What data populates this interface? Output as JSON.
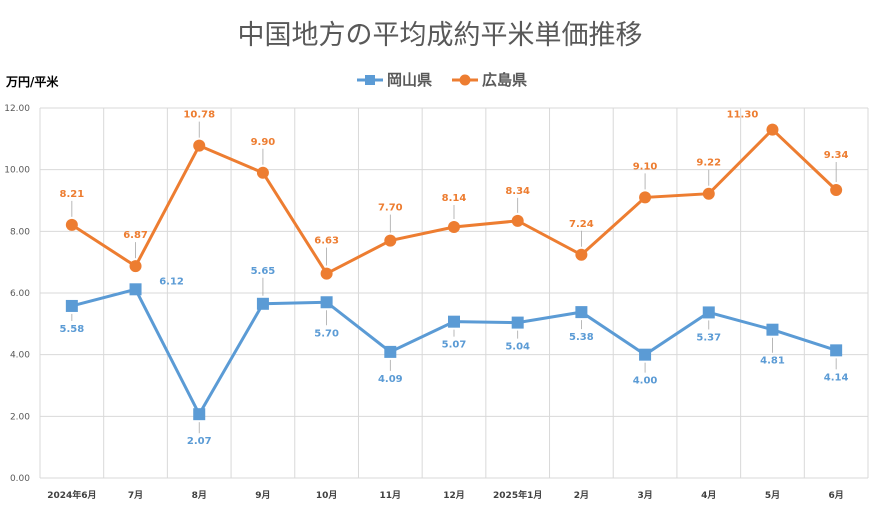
{
  "chart_data": {
    "type": "line",
    "title": "中国地方の平均成約平米単価推移",
    "ylabel": "万円/平米",
    "ylim": [
      0,
      12
    ],
    "yticks": [
      "0.00",
      "2.00",
      "4.00",
      "6.00",
      "8.00",
      "10.00",
      "12.00"
    ],
    "categories": [
      "2024年6月",
      "7月",
      "8月",
      "9月",
      "10月",
      "11月",
      "12月",
      "2025年1月",
      "2月",
      "3月",
      "4月",
      "5月",
      "6月"
    ],
    "grid": true,
    "legend": "top-center",
    "series": [
      {
        "name": "岡山県",
        "color": "#5b9bd5",
        "marker": "square",
        "values": [
          5.58,
          6.12,
          2.07,
          5.65,
          5.7,
          4.09,
          5.07,
          5.04,
          5.38,
          4.0,
          5.37,
          4.81,
          4.14
        ],
        "labels": [
          "5.58",
          "6.12",
          "2.07",
          "5.65",
          "5.70",
          "4.09",
          "5.07",
          "5.04",
          "5.38",
          "4.00",
          "5.37",
          "4.81",
          "4.14"
        ]
      },
      {
        "name": "広島県",
        "color": "#ed7d31",
        "marker": "circle",
        "values": [
          8.21,
          6.87,
          10.78,
          9.9,
          6.63,
          7.7,
          8.14,
          8.34,
          7.24,
          9.1,
          9.22,
          11.3,
          9.34
        ],
        "labels": [
          "8.21",
          "6.87",
          "10.78",
          "9.90",
          "6.63",
          "7.70",
          "8.14",
          "8.34",
          "7.24",
          "9.10",
          "9.22",
          "11.30",
          "9.34"
        ]
      }
    ]
  }
}
